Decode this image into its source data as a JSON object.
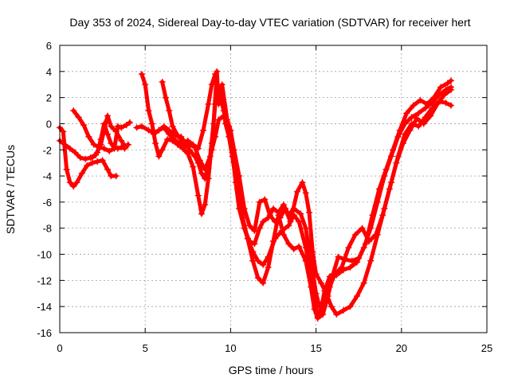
{
  "chart_data": {
    "type": "scatter",
    "title": "Day 353 of 2024, Sidereal Day-to-day VTEC variation (SDTVAR) for receiver hert",
    "xlabel": "GPS time / hours",
    "ylabel": "SDTVAR / TECUs",
    "xlim": [
      0,
      25
    ],
    "ylim": [
      -16,
      6
    ],
    "xticks": [
      0,
      5,
      10,
      15,
      20,
      25
    ],
    "yticks": [
      -16,
      -14,
      -12,
      -10,
      -8,
      -6,
      -4,
      -2,
      0,
      2,
      4,
      6
    ],
    "grid": true,
    "legend": "none",
    "marker": "plus",
    "color": "#ff0000",
    "series": [
      {
        "points": [
          [
            0,
            -0.3
          ],
          [
            0.2,
            -0.6
          ],
          [
            0.4,
            -3.5
          ],
          [
            0.6,
            -4.5
          ],
          [
            0.8,
            -4.8
          ],
          [
            1.0,
            -4.5
          ],
          [
            1.3,
            -3.8
          ],
          [
            1.6,
            -3.2
          ],
          [
            1.9,
            -3.0
          ],
          [
            2.2,
            -2.9
          ],
          [
            2.5,
            -2.8
          ],
          [
            2.8,
            -3.5
          ],
          [
            3.0,
            -4.0
          ],
          [
            3.3,
            -4.0
          ]
        ]
      },
      {
        "points": [
          [
            0,
            -1.3
          ],
          [
            0.3,
            -1.6
          ],
          [
            0.6,
            -1.9
          ],
          [
            0.9,
            -2.2
          ],
          [
            1.2,
            -2.6
          ],
          [
            1.5,
            -2.7
          ],
          [
            1.8,
            -2.6
          ],
          [
            2.1,
            -2.4
          ],
          [
            2.4,
            -1.6
          ],
          [
            2.6,
            -0.5
          ],
          [
            2.8,
            0.6
          ],
          [
            3.0,
            -0.2
          ],
          [
            3.3,
            -0.6
          ],
          [
            3.6,
            -1.3
          ],
          [
            3.8,
            -1.7
          ],
          [
            4.0,
            -1.6
          ]
        ]
      },
      {
        "points": [
          [
            0.8,
            1.0
          ],
          [
            1.1,
            0.5
          ],
          [
            1.4,
            -0.1
          ],
          [
            1.7,
            -1.0
          ],
          [
            2.0,
            -1.6
          ],
          [
            2.3,
            -1.8
          ],
          [
            2.6,
            -1.9
          ],
          [
            2.9,
            -2.1
          ],
          [
            3.2,
            -1.9
          ],
          [
            3.4,
            -0.2
          ],
          [
            3.6,
            -0.3
          ],
          [
            3.9,
            -0.1
          ],
          [
            4.1,
            0.1
          ]
        ]
      },
      {
        "points": [
          [
            1.9,
            -2.6
          ],
          [
            2.2,
            -2.2
          ],
          [
            2.4,
            -1.2
          ],
          [
            2.6,
            0.0
          ],
          [
            2.8,
            -0.8
          ],
          [
            3.0,
            -1.5
          ],
          [
            3.2,
            -1.8
          ],
          [
            3.4,
            -1.9
          ],
          [
            3.6,
            -1.8
          ],
          [
            3.8,
            -1.9
          ],
          [
            4.0,
            -1.6
          ]
        ]
      },
      {
        "points": [
          [
            4.5,
            -0.3
          ],
          [
            4.8,
            -0.2
          ],
          [
            5.2,
            -0.5
          ],
          [
            5.5,
            -0.7
          ],
          [
            5.8,
            -0.5
          ],
          [
            6.1,
            -0.2
          ],
          [
            6.4,
            -0.5
          ],
          [
            6.8,
            -0.9
          ],
          [
            7.1,
            -1.0
          ],
          [
            7.3,
            -1.4
          ],
          [
            7.6,
            -2.0
          ],
          [
            7.9,
            -2.5
          ],
          [
            8.1,
            -3.0
          ],
          [
            8.3,
            -3.8
          ],
          [
            8.5,
            -4.2
          ],
          [
            8.7,
            -3.4
          ],
          [
            8.9,
            -2.0
          ],
          [
            9.1,
            -1.0
          ],
          [
            9.3,
            0.3
          ],
          [
            9.6,
            0.6
          ],
          [
            9.9,
            -0.6
          ],
          [
            10.1,
            -2.2
          ],
          [
            10.3,
            -4.5
          ],
          [
            10.5,
            -6.5
          ],
          [
            10.8,
            -8.0
          ],
          [
            11.0,
            -8.8
          ],
          [
            11.3,
            -9.8
          ],
          [
            11.6,
            -10.5
          ],
          [
            11.9,
            -10.8
          ],
          [
            12.2,
            -10.2
          ],
          [
            12.6,
            -8.8
          ],
          [
            13.0,
            -8.2
          ],
          [
            13.4,
            -7.8
          ],
          [
            13.7,
            -7.0
          ],
          [
            14.0,
            -7.5
          ],
          [
            14.4,
            -9.5
          ],
          [
            14.7,
            -11.5
          ],
          [
            14.9,
            -13.5
          ],
          [
            15.1,
            -14.8
          ],
          [
            15.3,
            -14.2
          ],
          [
            15.5,
            -12.8
          ],
          [
            15.8,
            -11.7
          ],
          [
            16.2,
            -11.6
          ],
          [
            16.6,
            -11.2
          ],
          [
            17.0,
            -11.0
          ],
          [
            17.4,
            -10.6
          ],
          [
            17.8,
            -9.5
          ],
          [
            18.2,
            -8.0
          ],
          [
            18.6,
            -6.0
          ],
          [
            19.0,
            -4.0
          ],
          [
            19.4,
            -2.5
          ],
          [
            19.8,
            -1.0
          ],
          [
            20.2,
            0.0
          ],
          [
            20.6,
            0.5
          ],
          [
            21.0,
            0.8
          ],
          [
            21.4,
            1.2
          ],
          [
            21.8,
            1.6
          ],
          [
            22.2,
            2.2
          ],
          [
            22.6,
            2.6
          ],
          [
            22.9,
            2.8
          ]
        ]
      },
      {
        "points": [
          [
            4.8,
            3.8
          ],
          [
            5.0,
            3.0
          ],
          [
            5.2,
            1.0
          ],
          [
            5.4,
            0.0
          ],
          [
            5.6,
            -1.5
          ],
          [
            5.8,
            -2.5
          ],
          [
            6.0,
            -2.0
          ],
          [
            6.3,
            -1.2
          ],
          [
            6.6,
            -1.3
          ],
          [
            6.9,
            -1.6
          ],
          [
            7.2,
            -1.9
          ],
          [
            7.5,
            -2.3
          ],
          [
            7.8,
            -3.3
          ],
          [
            8.1,
            -5.5
          ],
          [
            8.3,
            -6.9
          ],
          [
            8.5,
            -6.2
          ],
          [
            8.7,
            -4.2
          ],
          [
            8.9,
            -1.5
          ],
          [
            9.1,
            1.5
          ],
          [
            9.3,
            2.8
          ],
          [
            9.5,
            2.0
          ],
          [
            9.7,
            0.0
          ],
          [
            9.9,
            -1.0
          ],
          [
            10.1,
            -2.5
          ],
          [
            10.4,
            -5.0
          ],
          [
            10.7,
            -7.2
          ],
          [
            11.0,
            -8.8
          ],
          [
            11.3,
            -10.5
          ],
          [
            11.6,
            -11.8
          ],
          [
            11.9,
            -12.2
          ],
          [
            12.2,
            -11.0
          ],
          [
            12.5,
            -9.0
          ],
          [
            12.8,
            -7.0
          ],
          [
            13.1,
            -8.5
          ],
          [
            13.4,
            -9.2
          ],
          [
            13.7,
            -9.6
          ],
          [
            14.0,
            -9.4
          ],
          [
            14.4,
            -10.5
          ],
          [
            14.7,
            -12.5
          ],
          [
            14.9,
            -14.2
          ],
          [
            15.1,
            -14.9
          ],
          [
            15.4,
            -14.6
          ],
          [
            15.7,
            -13.2
          ],
          [
            16.0,
            -11.5
          ],
          [
            16.3,
            -10.2
          ],
          [
            16.7,
            -10.4
          ],
          [
            17.1,
            -10.5
          ],
          [
            17.5,
            -10.3
          ],
          [
            17.9,
            -9.2
          ],
          [
            18.3,
            -7.0
          ],
          [
            18.7,
            -5.0
          ],
          [
            19.1,
            -3.5
          ],
          [
            19.5,
            -2.0
          ],
          [
            19.9,
            -0.5
          ],
          [
            20.3,
            0.8
          ],
          [
            20.7,
            1.4
          ],
          [
            21.1,
            1.8
          ],
          [
            21.5,
            1.5
          ],
          [
            21.9,
            2.0
          ],
          [
            22.3,
            2.8
          ],
          [
            22.7,
            3.1
          ],
          [
            22.9,
            3.3
          ]
        ]
      },
      {
        "points": [
          [
            5.5,
            -0.8
          ],
          [
            5.8,
            -0.5
          ],
          [
            6.1,
            -0.3
          ],
          [
            6.4,
            -0.8
          ],
          [
            6.7,
            -1.2
          ],
          [
            7.0,
            -1.5
          ],
          [
            7.3,
            -1.8
          ],
          [
            7.6,
            -1.6
          ],
          [
            7.9,
            -1.8
          ],
          [
            8.2,
            -2.8
          ],
          [
            8.5,
            -3.5
          ],
          [
            8.8,
            -2.5
          ],
          [
            9.0,
            0.0
          ],
          [
            9.2,
            4.0
          ],
          [
            9.3,
            1.5
          ],
          [
            9.5,
            3.0
          ],
          [
            9.8,
            0.3
          ],
          [
            10.0,
            -0.5
          ],
          [
            10.2,
            -2.0
          ],
          [
            10.5,
            -4.0
          ],
          [
            10.8,
            -6.5
          ],
          [
            11.1,
            -7.8
          ],
          [
            11.4,
            -8.2
          ],
          [
            11.7,
            -6.0
          ],
          [
            12.0,
            -5.8
          ],
          [
            12.3,
            -7.0
          ],
          [
            12.6,
            -7.5
          ],
          [
            12.9,
            -7.2
          ],
          [
            13.2,
            -6.5
          ],
          [
            13.5,
            -7.5
          ],
          [
            13.9,
            -5.2
          ],
          [
            14.2,
            -4.5
          ],
          [
            14.4,
            -5.3
          ],
          [
            14.6,
            -6.8
          ],
          [
            14.8,
            -9.8
          ],
          [
            15.0,
            -11.5
          ],
          [
            15.3,
            -12.2
          ],
          [
            15.6,
            -13.0
          ],
          [
            15.9,
            -14.0
          ],
          [
            16.2,
            -14.6
          ],
          [
            16.6,
            -14.3
          ],
          [
            17.0,
            -14.0
          ],
          [
            17.4,
            -13.2
          ],
          [
            17.8,
            -12.2
          ],
          [
            18.2,
            -10.5
          ],
          [
            18.6,
            -8.5
          ],
          [
            19.0,
            -6.5
          ],
          [
            19.4,
            -4.5
          ],
          [
            19.8,
            -2.5
          ],
          [
            20.2,
            -0.8
          ],
          [
            20.6,
            0.0
          ],
          [
            21.0,
            -0.2
          ],
          [
            21.4,
            0.5
          ],
          [
            21.8,
            1.2
          ],
          [
            22.2,
            1.7
          ],
          [
            22.6,
            1.6
          ],
          [
            22.9,
            1.4
          ]
        ]
      },
      {
        "points": [
          [
            6.0,
            3.2
          ],
          [
            6.2,
            2.0
          ],
          [
            6.4,
            1.0
          ],
          [
            6.6,
            -0.2
          ],
          [
            6.9,
            -0.9
          ],
          [
            7.2,
            -1.4
          ],
          [
            7.5,
            -1.3
          ],
          [
            7.8,
            -1.6
          ],
          [
            8.1,
            -1.9
          ],
          [
            8.4,
            -0.5
          ],
          [
            8.7,
            1.5
          ],
          [
            8.9,
            3.0
          ],
          [
            9.1,
            3.8
          ],
          [
            9.3,
            2.5
          ],
          [
            9.6,
            1.0
          ],
          [
            9.9,
            -0.2
          ],
          [
            10.2,
            -3.0
          ],
          [
            10.5,
            -5.5
          ],
          [
            10.8,
            -8.0
          ],
          [
            11.1,
            -9.0
          ],
          [
            11.4,
            -9.2
          ],
          [
            11.7,
            -8.0
          ],
          [
            11.9,
            -7.5
          ],
          [
            12.2,
            -7.2
          ],
          [
            12.5,
            -6.5
          ],
          [
            12.8,
            -6.8
          ],
          [
            13.1,
            -6.2
          ],
          [
            13.4,
            -7.0
          ],
          [
            13.7,
            -6.5
          ],
          [
            14.1,
            -6.9
          ],
          [
            14.4,
            -8.0
          ],
          [
            14.7,
            -10.5
          ],
          [
            15.0,
            -13.0
          ],
          [
            15.2,
            -14.0
          ],
          [
            15.5,
            -13.5
          ],
          [
            15.8,
            -12.5
          ],
          [
            16.1,
            -11.5
          ],
          [
            16.5,
            -11.0
          ],
          [
            16.9,
            -9.5
          ],
          [
            17.3,
            -8.5
          ],
          [
            17.7,
            -8.0
          ],
          [
            18.1,
            -9.0
          ],
          [
            18.5,
            -8.5
          ],
          [
            18.9,
            -7.0
          ],
          [
            19.3,
            -5.0
          ],
          [
            19.7,
            -3.0
          ],
          [
            20.1,
            -1.5
          ],
          [
            20.5,
            -0.5
          ],
          [
            20.9,
            0.4
          ],
          [
            21.3,
            0.0
          ],
          [
            21.7,
            0.6
          ],
          [
            22.1,
            1.5
          ],
          [
            22.5,
            2.2
          ],
          [
            22.9,
            2.6
          ]
        ]
      }
    ]
  }
}
